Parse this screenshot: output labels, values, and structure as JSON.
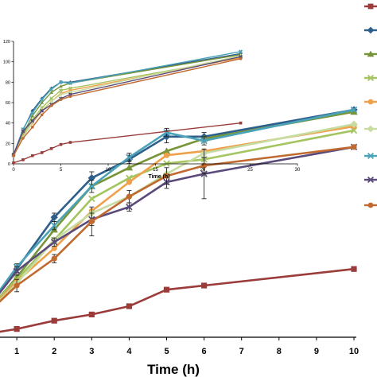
{
  "chart_data": [
    {
      "type": "line",
      "panel": "main",
      "xlabel": "Time (h)",
      "ylabel": "",
      "xlim": [
        0,
        10
      ],
      "ylim": [
        0,
        100
      ],
      "x_ticks": [
        "1",
        "2",
        "3",
        "4",
        "5",
        "6",
        "7",
        "8",
        "9",
        "10"
      ],
      "grid": false,
      "legend": "right, markers only",
      "series": [
        {
          "color": "#9b3b3a",
          "marker": "square",
          "x": [
            0,
            1,
            2,
            3,
            4,
            5,
            6,
            10
          ],
          "y": [
            1,
            4,
            8,
            11,
            15,
            23,
            25,
            33
          ]
        },
        {
          "color": "#2e5f8a",
          "marker": "diamond",
          "x": [
            0,
            1,
            2,
            3,
            4,
            5,
            6,
            10
          ],
          "y": [
            9,
            33,
            58,
            77,
            86,
            97,
            97,
            110
          ],
          "err": [
            0,
            1.5,
            2,
            3,
            2,
            3,
            2,
            0
          ]
        },
        {
          "color": "#779438",
          "marker": "triangle",
          "x": [
            0,
            1,
            2,
            3,
            4,
            5,
            6,
            10
          ],
          "y": [
            8,
            29,
            52,
            73,
            82,
            90,
            96,
            109
          ]
        },
        {
          "color": "#a3c45f",
          "marker": "x",
          "x": [
            0,
            1,
            2,
            3,
            4,
            5,
            6,
            10
          ],
          "y": [
            9,
            28,
            47,
            67,
            77,
            84,
            86,
            100
          ]
        },
        {
          "color": "#f0a04a",
          "marker": "circle",
          "x": [
            0,
            1,
            2,
            3,
            4,
            5,
            6,
            10
          ],
          "y": [
            8,
            27,
            43,
            61,
            75,
            88,
            90,
            102
          ]
        },
        {
          "color": "#c7dca0",
          "marker": "diamond",
          "x": [
            0,
            1,
            2,
            3,
            4,
            5,
            6,
            10
          ],
          "y": [
            8,
            26,
            47,
            60,
            68,
            79,
            89,
            103
          ]
        },
        {
          "color": "#4ba3b9",
          "marker": "x",
          "x": [
            0,
            1,
            2,
            3,
            4,
            5,
            6,
            10
          ],
          "y": [
            9,
            34,
            54,
            73,
            87,
            99,
            95,
            110
          ],
          "err": [
            0,
            1.5,
            2,
            3,
            2,
            2,
            2,
            0
          ]
        },
        {
          "color": "#5a4a7a",
          "marker": "x",
          "x": [
            0,
            1,
            2,
            3,
            4,
            5,
            6,
            10
          ],
          "y": [
            9,
            32,
            46,
            57,
            63,
            75,
            79,
            92
          ],
          "err": [
            0,
            2,
            2,
            3,
            2,
            3,
            12,
            0
          ]
        },
        {
          "color": "#c06a30",
          "marker": "circle",
          "x": [
            0,
            1,
            2,
            3,
            4,
            5,
            6,
            10
          ],
          "y": [
            8,
            25,
            38,
            56,
            68,
            78,
            83,
            92
          ],
          "err": [
            0,
            3,
            2,
            7,
            3,
            4,
            4,
            0
          ]
        }
      ]
    },
    {
      "type": "line",
      "panel": "inset",
      "xlabel": "Time (h)",
      "ylabel": "",
      "xlim": [
        0,
        30
      ],
      "ylim": [
        0,
        120
      ],
      "x_ticks": [
        "0",
        "5",
        "10",
        "15",
        "20",
        "25",
        "30"
      ],
      "y_ticks": [
        "0",
        "20",
        "40",
        "60",
        "80",
        "100",
        "120"
      ],
      "grid": false,
      "series": [
        {
          "color": "#9b3b3a",
          "marker": "square",
          "x": [
            0,
            1,
            2,
            3,
            4,
            5,
            6,
            24
          ],
          "y": [
            1,
            4,
            8,
            11,
            15,
            19,
            21,
            40
          ]
        },
        {
          "color": "#2e5f8a",
          "marker": "diamond",
          "x": [
            0,
            1,
            2,
            3,
            4,
            5,
            6,
            24
          ],
          "y": [
            9,
            33,
            52,
            64,
            74,
            80,
            80,
            108
          ]
        },
        {
          "color": "#779438",
          "marker": "triangle",
          "x": [
            0,
            1,
            2,
            3,
            4,
            5,
            6,
            24
          ],
          "y": [
            8,
            29,
            47,
            60,
            70,
            76,
            79,
            107
          ]
        },
        {
          "color": "#a3c45f",
          "marker": "x",
          "x": [
            0,
            1,
            2,
            3,
            4,
            5,
            6,
            24
          ],
          "y": [
            9,
            28,
            43,
            55,
            64,
            72,
            74,
            104
          ]
        },
        {
          "color": "#f0a04a",
          "marker": "circle",
          "x": [
            0,
            1,
            2,
            3,
            4,
            5,
            6,
            24
          ],
          "y": [
            8,
            27,
            40,
            52,
            61,
            69,
            72,
            104
          ]
        },
        {
          "color": "#c7dca0",
          "marker": "diamond",
          "x": [
            0,
            1,
            2,
            3,
            4,
            5,
            6,
            24
          ],
          "y": [
            8,
            26,
            41,
            53,
            61,
            68,
            70,
            106
          ]
        },
        {
          "color": "#4ba3b9",
          "marker": "x",
          "x": [
            0,
            1,
            2,
            3,
            4,
            5,
            6,
            24
          ],
          "y": [
            9,
            34,
            50,
            63,
            73,
            80,
            79,
            110
          ]
        },
        {
          "color": "#5a4a7a",
          "marker": "x",
          "x": [
            0,
            1,
            2,
            3,
            4,
            5,
            6,
            24
          ],
          "y": [
            9,
            32,
            42,
            52,
            58,
            64,
            68,
            105
          ]
        },
        {
          "color": "#c06a30",
          "marker": "circle",
          "x": [
            0,
            1,
            2,
            3,
            4,
            5,
            6,
            24
          ],
          "y": [
            8,
            25,
            36,
            48,
            57,
            63,
            66,
            103
          ]
        }
      ]
    }
  ]
}
